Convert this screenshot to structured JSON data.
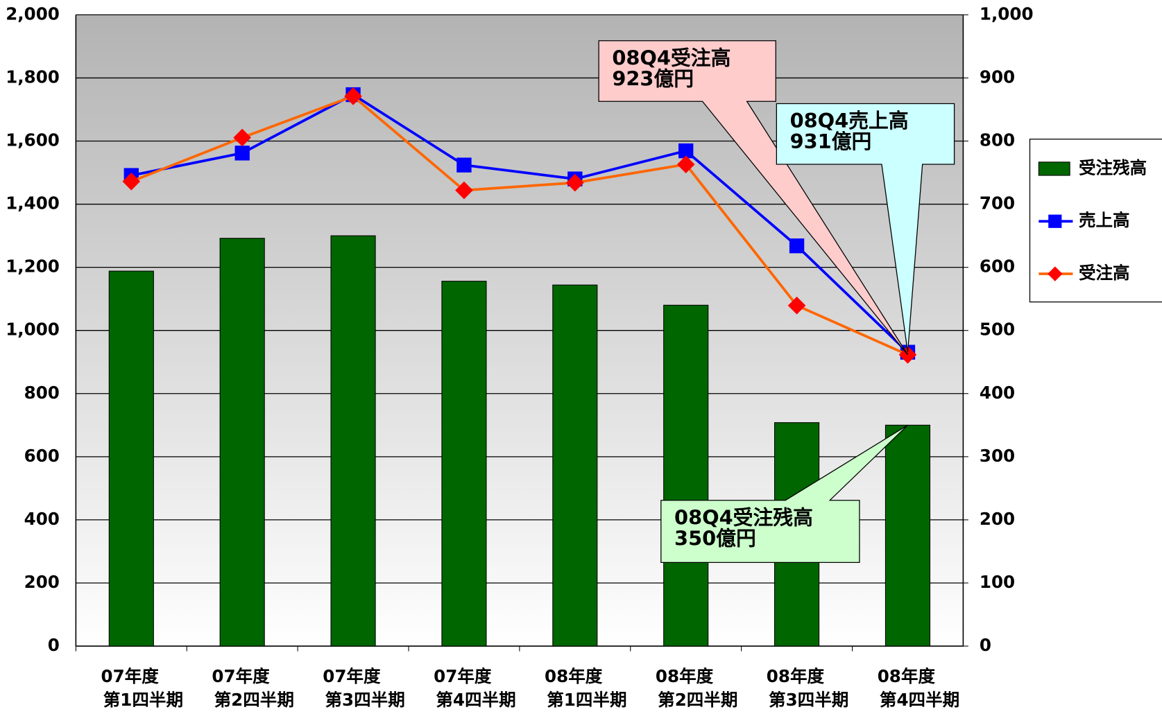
{
  "chart_data": {
    "type": "bar_line",
    "categories": [
      [
        "07年度",
        "第1四半期"
      ],
      [
        "07年度",
        "第2四半期"
      ],
      [
        "07年度",
        "第3四半期"
      ],
      [
        "07年度",
        "第4四半期"
      ],
      [
        "08年度",
        "第1四半期"
      ],
      [
        "08年度",
        "第2四半期"
      ],
      [
        "08年度",
        "第3四半期"
      ],
      [
        "08年度",
        "第4四半期"
      ]
    ],
    "series": [
      {
        "name": "受注残高",
        "type": "bar",
        "axis": "y2",
        "color": "#006600",
        "values": [
          594,
          646,
          650,
          578,
          572,
          540,
          354,
          350
        ]
      },
      {
        "name": "売上高",
        "type": "line",
        "color": "#0000ff",
        "marker": "square",
        "marker_color": "#0000ff",
        "values": [
          1491,
          1562,
          1747,
          1524,
          1480,
          1569,
          1268,
          931
        ]
      },
      {
        "name": "受注高",
        "type": "line",
        "color": "#ff6600",
        "marker": "diamond",
        "marker_color": "#ff0000",
        "values": [
          1472,
          1611,
          1742,
          1444,
          1468,
          1526,
          1079,
          923
        ]
      }
    ],
    "ylim": [
      0,
      2000
    ],
    "yticks": [
      0,
      200,
      400,
      600,
      800,
      {
        "value": 1000,
        "label": "1,000"
      },
      {
        "value": 1200,
        "label": "1,200"
      },
      {
        "value": 1400,
        "label": "1,400"
      },
      {
        "value": 1600,
        "label": "1,600"
      },
      {
        "value": 1800,
        "label": "1,800"
      },
      {
        "value": 2000,
        "label": "2,000"
      }
    ],
    "y2lim": [
      0,
      1000
    ],
    "y2ticks": [
      0,
      100,
      200,
      300,
      400,
      500,
      600,
      700,
      800,
      900,
      {
        "value": 1000,
        "label": "1,000"
      }
    ],
    "grid": true,
    "legend": "right",
    "annotations": [
      {
        "lines": [
          "08Q4受注高",
          "923億円"
        ],
        "color": "#ffcccc",
        "series": 2
      },
      {
        "lines": [
          "08Q4売上高",
          "931億円"
        ],
        "color": "#ccffff",
        "series": 1
      },
      {
        "lines": [
          "08Q4受注残高",
          "350億円"
        ],
        "color": "#ccffcc",
        "series": 0
      }
    ]
  }
}
